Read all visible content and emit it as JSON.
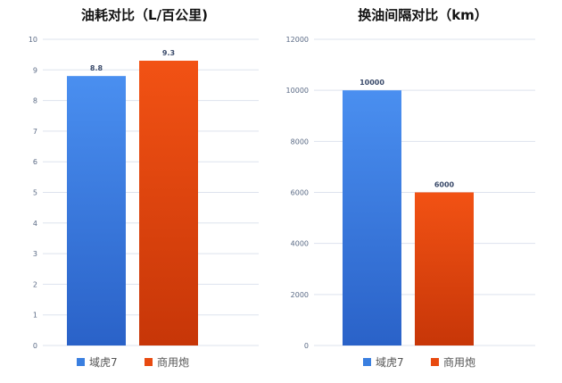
{
  "colors": {
    "series_a": "#3a7fe0",
    "series_b": "#e84a10",
    "grid": "#dde3ee",
    "axis_text": "#5a6a85",
    "label_text": "#3a4a6a",
    "title_text": "#111111"
  },
  "chart_data": [
    {
      "type": "bar",
      "title": "油耗对比（L/百公里)",
      "categories": [
        ""
      ],
      "series": [
        {
          "name": "域虎7",
          "values": [
            8.8
          ]
        },
        {
          "name": "商用炮",
          "values": [
            9.3
          ]
        }
      ],
      "ylim": [
        0,
        10
      ],
      "yticks": [
        0,
        1,
        2,
        3,
        4,
        5,
        6,
        7,
        8,
        9,
        10
      ],
      "data_labels": [
        "8.8",
        "9.3"
      ],
      "grid": true,
      "legend": "bottom"
    },
    {
      "type": "bar",
      "title": "换油间隔对比（km）",
      "categories": [
        ""
      ],
      "series": [
        {
          "name": "域虎7",
          "values": [
            10000
          ]
        },
        {
          "name": "商用炮",
          "values": [
            6000
          ]
        }
      ],
      "ylim": [
        0,
        12000
      ],
      "yticks": [
        0,
        2000,
        4000,
        6000,
        8000,
        10000,
        12000
      ],
      "data_labels": [
        "10000",
        "6000"
      ],
      "grid": true,
      "legend": "bottom"
    }
  ]
}
